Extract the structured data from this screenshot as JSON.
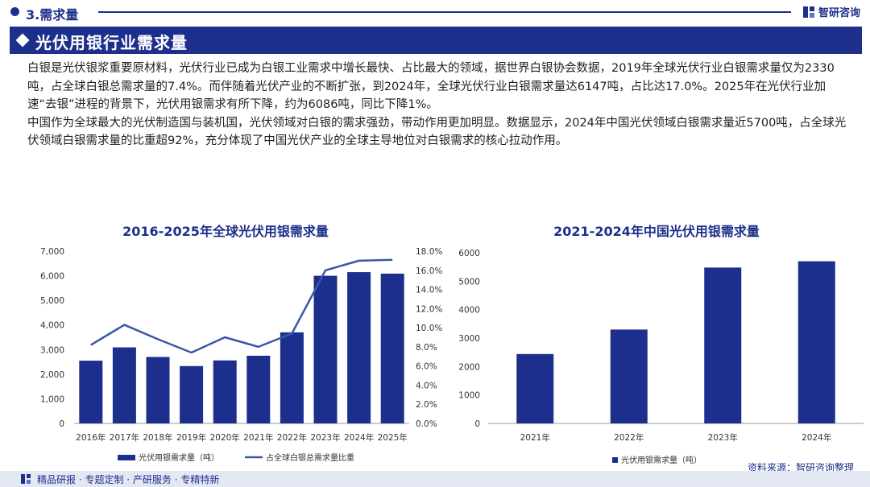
{
  "header": {
    "section_title": "3.需求量",
    "brand_name": "智研咨询"
  },
  "banner": {
    "title": "光伏用银行业需求量"
  },
  "body": {
    "paragraphs": [
      "白银是光伏银浆重要原材料，光伏行业已成为白银工业需求中增长最快、占比最大的领域，据世界白银协会数据，2019年全球光伏行业白银需求量仅为2330吨，占全球白银总需求量的7.4%。而伴随着光伏产业的不断扩张，到2024年，全球光伏行业白银需求量达6147吨，占比达17.0%。2025年在光伏行业加速“去银”进程的背景下，光伏用银需求有所下降，约为6086吨，同比下降1%。",
      "中国作为全球最大的光伏制造国与装机国，光伏领域对白银的需求强劲，带动作用更加明显。数据显示，2024年中国光伏领域白银需求量近5700吨，占全球光伏领域白银需求量的比重超92%，充分体现了中国光伏产业的全球主导地位对白银需求的核心拉动作用。"
    ]
  },
  "colors": {
    "navy": "#1d2f8c",
    "line": "#3a57a8"
  },
  "chart_data": [
    {
      "type": "bar",
      "title": "2016-2025年全球光伏用银需求量",
      "categories": [
        "2016年",
        "2017年",
        "2018年",
        "2019年",
        "2020年",
        "2021年",
        "2022年",
        "2023年",
        "2024年",
        "2025年"
      ],
      "series": [
        {
          "name": "光伏用银需求量（吨）",
          "type": "bar",
          "axis": "left",
          "values": [
            2550,
            3090,
            2700,
            2330,
            2560,
            2750,
            3700,
            6000,
            6147,
            6086
          ]
        },
        {
          "name": "占全球白银总需求量比重",
          "type": "line",
          "axis": "right",
          "values": [
            8.2,
            10.3,
            8.8,
            7.4,
            9.0,
            8.0,
            9.4,
            16.0,
            17.0,
            17.1
          ]
        }
      ],
      "ylim": [
        0,
        7000
      ],
      "yticks": [
        0,
        1000,
        2000,
        3000,
        4000,
        5000,
        6000,
        7000
      ],
      "ytick_labels": [
        "0",
        "1,000",
        "2,000",
        "3,000",
        "4,000",
        "5,000",
        "6,000",
        "7,000"
      ],
      "y2lim": [
        0,
        18
      ],
      "y2ticks": [
        0,
        2,
        4,
        6,
        8,
        10,
        12,
        14,
        16,
        18
      ],
      "y2tick_labels": [
        "0.0%",
        "2.0%",
        "4.0%",
        "6.0%",
        "8.0%",
        "10.0%",
        "12.0%",
        "14.0%",
        "16.0%",
        "18.0%"
      ],
      "legend": [
        "光伏用银需求量（吨）",
        "占全球白银总需求量比重"
      ],
      "legend_position": "bottom"
    },
    {
      "type": "bar",
      "title": "2021-2024年中国光伏用银需求量",
      "categories": [
        "2021年",
        "2022年",
        "2023年",
        "2024年"
      ],
      "series": [
        {
          "name": "光伏用银需求量（吨）",
          "values": [
            2440,
            3300,
            5480,
            5700
          ]
        }
      ],
      "ylim": [
        0,
        6000
      ],
      "yticks": [
        0,
        1000,
        2000,
        3000,
        4000,
        5000,
        6000
      ],
      "ytick_labels": [
        "0",
        "1000",
        "2000",
        "3000",
        "4000",
        "5000",
        "6000"
      ],
      "legend": [
        "光伏用银需求量（吨）"
      ],
      "legend_position": "bottom"
    }
  ],
  "footer": {
    "tagline": "精品研报 · 专题定制 · 产研服务 · 专精特新",
    "source": "资料来源：智研咨询整理"
  }
}
